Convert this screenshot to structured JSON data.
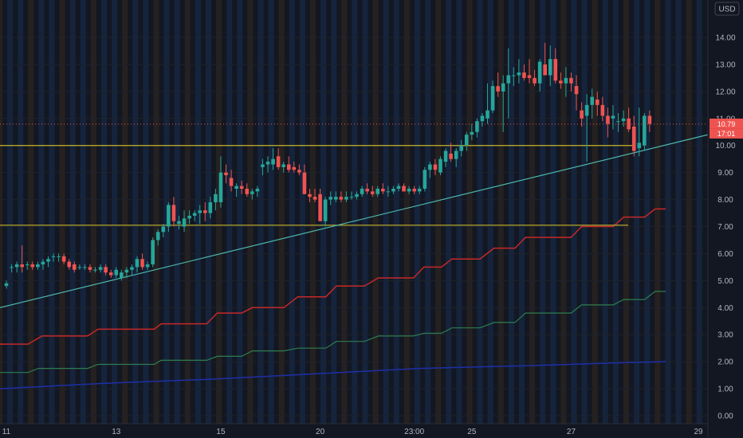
{
  "chart_data": {
    "type": "candlestick",
    "currency": "USD",
    "ylim": [
      -0.2,
      15.0
    ],
    "y_ticks": [
      "0.00",
      "1.00",
      "2.00",
      "3.00",
      "4.00",
      "5.00",
      "6.00",
      "7.00",
      "8.00",
      "9.00",
      "10.00",
      "11.00",
      "12.00",
      "13.00",
      "14.00"
    ],
    "x_ticks": [
      {
        "label": "11",
        "index": 0
      },
      {
        "label": "13",
        "index": 21
      },
      {
        "label": "15",
        "index": 41
      },
      {
        "label": "20",
        "index": 60
      },
      {
        "label": "23:00",
        "index": 78
      },
      {
        "label": "25",
        "index": 89
      },
      {
        "label": "27",
        "index": 108
      },
      {
        "label": "29",
        "index": 128
      }
    ],
    "last_price": "10.79",
    "second_badge": "17:01",
    "colors": {
      "background": "#131722",
      "up": "#26a69a",
      "down": "#ef5350",
      "horizontal_lines": "#c6b52e",
      "trendline": "#4db6ac",
      "red_step": "#c62828",
      "green_step": "#2e7d4f",
      "blue_line": "#1e2fa8",
      "session_blue": "#172a45",
      "session_orange": "#2c2620",
      "badge": "#ef5350"
    },
    "horizontal_lines": [
      10.0,
      7.05
    ],
    "trendline": {
      "from": [
        0,
        4.0
      ],
      "to": [
        130,
        10.4
      ]
    },
    "candles": [
      [
        4.8,
        5.0,
        4.7,
        4.9
      ],
      [
        5.5,
        5.6,
        5.3,
        5.5
      ],
      [
        5.5,
        5.7,
        5.3,
        5.6
      ],
      [
        5.6,
        6.3,
        5.3,
        5.5
      ],
      [
        5.6,
        5.7,
        5.4,
        5.6
      ],
      [
        5.6,
        5.7,
        5.4,
        5.5
      ],
      [
        5.5,
        5.7,
        5.4,
        5.6
      ],
      [
        5.6,
        5.8,
        5.4,
        5.7
      ],
      [
        5.7,
        5.9,
        5.5,
        5.8
      ],
      [
        5.9,
        6.0,
        5.7,
        5.9
      ],
      [
        5.9,
        6.0,
        5.7,
        5.9
      ],
      [
        5.9,
        6.0,
        5.6,
        5.7
      ],
      [
        5.7,
        5.8,
        5.4,
        5.5
      ],
      [
        5.6,
        5.7,
        5.3,
        5.4
      ],
      [
        5.5,
        5.6,
        5.4,
        5.5
      ],
      [
        5.5,
        5.6,
        5.4,
        5.5
      ],
      [
        5.5,
        5.6,
        5.3,
        5.4
      ],
      [
        5.4,
        5.5,
        5.3,
        5.4
      ],
      [
        5.4,
        5.6,
        5.3,
        5.5
      ],
      [
        5.5,
        5.6,
        5.2,
        5.3
      ],
      [
        5.3,
        5.4,
        5.1,
        5.2
      ],
      [
        5.2,
        5.5,
        5.1,
        5.4
      ],
      [
        5.1,
        5.4,
        5.0,
        5.3
      ],
      [
        5.3,
        5.5,
        5.1,
        5.4
      ],
      [
        5.4,
        5.6,
        5.2,
        5.5
      ],
      [
        5.5,
        5.9,
        5.3,
        5.8
      ],
      [
        5.8,
        6.0,
        5.4,
        5.5
      ],
      [
        5.5,
        5.7,
        5.4,
        5.6
      ],
      [
        5.6,
        6.6,
        5.5,
        6.5
      ],
      [
        6.5,
        6.9,
        6.3,
        6.8
      ],
      [
        6.8,
        7.1,
        6.6,
        7.0
      ],
      [
        7.0,
        7.9,
        6.8,
        7.8
      ],
      [
        7.8,
        8.1,
        7.0,
        7.2
      ],
      [
        7.1,
        7.4,
        6.9,
        7.2
      ],
      [
        7.0,
        7.6,
        6.8,
        7.3
      ],
      [
        7.3,
        7.6,
        7.1,
        7.4
      ],
      [
        7.4,
        7.6,
        7.2,
        7.5
      ],
      [
        7.5,
        7.8,
        7.1,
        7.6
      ],
      [
        7.6,
        7.9,
        7.2,
        7.5
      ],
      [
        7.5,
        8.1,
        7.3,
        7.9
      ],
      [
        7.9,
        8.4,
        7.6,
        8.2
      ],
      [
        7.9,
        9.6,
        7.7,
        9.0
      ],
      [
        9.0,
        9.3,
        8.6,
        8.9
      ],
      [
        8.8,
        9.1,
        8.3,
        8.5
      ],
      [
        8.4,
        8.6,
        8.1,
        8.5
      ],
      [
        8.5,
        8.7,
        8.2,
        8.4
      ],
      [
        8.4,
        8.6,
        8.1,
        8.2
      ],
      [
        8.2,
        8.4,
        8.0,
        8.3
      ],
      [
        8.3,
        8.5,
        8.1,
        8.4
      ],
      [
        9.2,
        9.5,
        8.9,
        9.3
      ],
      [
        9.3,
        9.6,
        9.0,
        9.4
      ],
      [
        9.3,
        9.9,
        9.1,
        9.5
      ],
      [
        9.6,
        9.9,
        9.1,
        9.2
      ],
      [
        9.2,
        9.4,
        9.0,
        9.3
      ],
      [
        9.3,
        9.6,
        9.0,
        9.1
      ],
      [
        9.2,
        9.4,
        9.0,
        9.1
      ],
      [
        9.1,
        9.3,
        8.9,
        9.0
      ],
      [
        9.0,
        9.3,
        8.2,
        8.2
      ],
      [
        8.2,
        8.4,
        7.9,
        8.1
      ],
      [
        8.1,
        8.4,
        7.9,
        8.0
      ],
      [
        8.2,
        8.4,
        7.2,
        7.2
      ],
      [
        7.2,
        8.1,
        7.0,
        8.0
      ],
      [
        8.0,
        8.3,
        7.8,
        8.1
      ],
      [
        8.0,
        8.3,
        7.9,
        8.1
      ],
      [
        8.1,
        8.3,
        7.9,
        8.0
      ],
      [
        8.0,
        8.3,
        7.9,
        8.1
      ],
      [
        8.1,
        8.3,
        8.0,
        8.1
      ],
      [
        8.1,
        8.3,
        8.0,
        8.2
      ],
      [
        8.2,
        8.5,
        8.1,
        8.4
      ],
      [
        8.4,
        8.6,
        8.2,
        8.3
      ],
      [
        8.3,
        8.5,
        8.1,
        8.2
      ],
      [
        8.2,
        8.5,
        8.1,
        8.4
      ],
      [
        8.4,
        8.6,
        8.2,
        8.3
      ],
      [
        8.3,
        8.5,
        8.1,
        8.3
      ],
      [
        8.3,
        8.5,
        8.2,
        8.4
      ],
      [
        8.4,
        8.6,
        8.3,
        8.5
      ],
      [
        8.5,
        8.6,
        8.3,
        8.3
      ],
      [
        8.3,
        8.5,
        8.2,
        8.4
      ],
      [
        8.4,
        8.5,
        8.2,
        8.3
      ],
      [
        8.3,
        8.5,
        8.2,
        8.4
      ],
      [
        8.4,
        9.2,
        8.3,
        9.1
      ],
      [
        9.1,
        9.4,
        8.8,
        9.3
      ],
      [
        9.3,
        9.5,
        8.9,
        9.1
      ],
      [
        9.0,
        9.6,
        8.9,
        9.5
      ],
      [
        9.4,
        9.9,
        9.2,
        9.8
      ],
      [
        9.7,
        10.1,
        9.4,
        9.5
      ],
      [
        9.5,
        9.9,
        9.2,
        9.8
      ],
      [
        9.8,
        10.2,
        9.6,
        10.0
      ],
      [
        10.0,
        10.5,
        9.8,
        10.4
      ],
      [
        10.4,
        10.8,
        10.2,
        10.5
      ],
      [
        10.5,
        11.0,
        10.3,
        10.9
      ],
      [
        10.9,
        11.2,
        10.7,
        11.1
      ],
      [
        11.0,
        12.3,
        10.8,
        11.3
      ],
      [
        11.3,
        12.4,
        11.2,
        12.2
      ],
      [
        12.2,
        12.7,
        11.8,
        12.0
      ],
      [
        12.0,
        12.6,
        10.5,
        12.3
      ],
      [
        12.3,
        13.6,
        11.0,
        12.6
      ],
      [
        12.6,
        12.9,
        12.2,
        12.6
      ],
      [
        12.6,
        13.2,
        12.3,
        12.7
      ],
      [
        12.7,
        13.0,
        12.4,
        12.5
      ],
      [
        12.6,
        13.2,
        12.3,
        12.5
      ],
      [
        12.5,
        12.8,
        12.2,
        12.3
      ],
      [
        12.3,
        13.2,
        12.0,
        13.1
      ],
      [
        13.0,
        13.8,
        12.7,
        12.6
      ],
      [
        12.6,
        13.7,
        12.2,
        13.2
      ],
      [
        13.2,
        13.6,
        12.3,
        12.4
      ],
      [
        12.4,
        12.7,
        12.1,
        12.3
      ],
      [
        12.3,
        12.9,
        11.8,
        12.5
      ],
      [
        12.5,
        12.7,
        12.0,
        12.3
      ],
      [
        12.2,
        12.6,
        11.3,
        11.9
      ],
      [
        11.3,
        11.6,
        10.7,
        11.0
      ],
      [
        11.1,
        11.9,
        9.4,
        11.5
      ],
      [
        11.5,
        12.1,
        11.0,
        11.8
      ],
      [
        11.7,
        12.0,
        11.1,
        11.5
      ],
      [
        11.5,
        11.8,
        10.9,
        11.1
      ],
      [
        11.1,
        11.4,
        10.3,
        10.8
      ],
      [
        11.0,
        11.5,
        10.6,
        11.1
      ],
      [
        10.9,
        11.2,
        10.5,
        10.9
      ],
      [
        10.9,
        11.3,
        10.7,
        11.0
      ],
      [
        11.0,
        11.4,
        10.5,
        10.6
      ],
      [
        10.7,
        11.1,
        9.6,
        9.8
      ],
      [
        9.9,
        11.4,
        9.6,
        10.1
      ],
      [
        10.0,
        11.2,
        9.8,
        11.1
      ],
      [
        11.1,
        11.3,
        10.5,
        10.8
      ]
    ],
    "red_step": [
      [
        0,
        2.65
      ],
      [
        8,
        2.65
      ],
      [
        12,
        2.95
      ],
      [
        25,
        2.95
      ],
      [
        28,
        3.2
      ],
      [
        44,
        3.2
      ],
      [
        46,
        3.4
      ],
      [
        59,
        3.4
      ],
      [
        62,
        3.8
      ],
      [
        69,
        3.8
      ],
      [
        72,
        4.0
      ],
      [
        81,
        4.0
      ],
      [
        85,
        4.4
      ],
      [
        93,
        4.4
      ],
      [
        96,
        4.8
      ],
      [
        104,
        4.8
      ],
      [
        108,
        5.1
      ],
      [
        118,
        5.1
      ],
      [
        121,
        5.5
      ],
      [
        126,
        5.5
      ],
      [
        129,
        5.8
      ],
      [
        137,
        5.8
      ],
      [
        141,
        6.2
      ],
      [
        147,
        6.2
      ],
      [
        150,
        6.6
      ],
      [
        163,
        6.6
      ],
      [
        166,
        7.0
      ],
      [
        175,
        7.0
      ],
      [
        178,
        7.35
      ],
      [
        184,
        7.35
      ],
      [
        187,
        7.65
      ],
      [
        190,
        7.65
      ]
    ],
    "green_step": [
      [
        0,
        1.6
      ],
      [
        8,
        1.6
      ],
      [
        11,
        1.75
      ],
      [
        25,
        1.75
      ],
      [
        28,
        1.9
      ],
      [
        44,
        1.9
      ],
      [
        46,
        2.05
      ],
      [
        59,
        2.05
      ],
      [
        62,
        2.2
      ],
      [
        69,
        2.2
      ],
      [
        72,
        2.4
      ],
      [
        81,
        2.4
      ],
      [
        85,
        2.5
      ],
      [
        93,
        2.5
      ],
      [
        96,
        2.75
      ],
      [
        104,
        2.75
      ],
      [
        108,
        2.95
      ],
      [
        118,
        2.95
      ],
      [
        121,
        3.05
      ],
      [
        126,
        3.05
      ],
      [
        129,
        3.25
      ],
      [
        137,
        3.25
      ],
      [
        141,
        3.45
      ],
      [
        147,
        3.45
      ],
      [
        150,
        3.8
      ],
      [
        163,
        3.8
      ],
      [
        166,
        4.1
      ],
      [
        175,
        4.1
      ],
      [
        178,
        4.3
      ],
      [
        184,
        4.3
      ],
      [
        187,
        4.6
      ],
      [
        190,
        4.6
      ]
    ],
    "blue_line": [
      [
        0,
        1.0
      ],
      [
        30,
        1.2
      ],
      [
        60,
        1.35
      ],
      [
        90,
        1.55
      ],
      [
        120,
        1.75
      ],
      [
        150,
        1.85
      ],
      [
        175,
        1.95
      ],
      [
        190,
        2.0
      ]
    ]
  }
}
